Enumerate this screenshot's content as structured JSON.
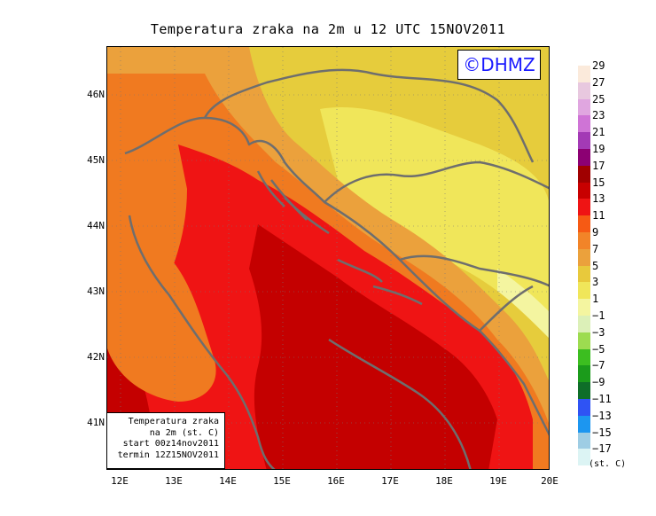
{
  "title": "Temperatura zraka na 2m u 12 UTC 15NOV2011",
  "logo": "©DHMZ",
  "info": {
    "line1": "Temperatura zraka",
    "line2": "na 2m (st. C)",
    "line3": "start 00z14nov2011",
    "line4": "termin 12Z15NOV2011"
  },
  "lat_labels": [
    "46N",
    "45N",
    "44N",
    "43N",
    "42N",
    "41N"
  ],
  "lon_labels": [
    "12E",
    "13E",
    "14E",
    "15E",
    "16E",
    "17E",
    "18E",
    "19E",
    "20E"
  ],
  "legend": {
    "unit": "(st. C)",
    "labels": [
      "29",
      "27",
      "25",
      "23",
      "21",
      "19",
      "17",
      "15",
      "13",
      "11",
      "9",
      "7",
      "5",
      "3",
      "1",
      "−1",
      "−3",
      "−5",
      "−7",
      "−9",
      "−11",
      "−13",
      "−15",
      "−17"
    ],
    "colors": [
      "#fbeadb",
      "#e8c8df",
      "#e0a6e0",
      "#cf74d6",
      "#a33ab5",
      "#8c0073",
      "#a00000",
      "#c80000",
      "#ef1414",
      "#f65a14",
      "#f28428",
      "#eba13c",
      "#e8c93c",
      "#f0e65a",
      "#f4f5a0",
      "#dcf0b8",
      "#9ddc50",
      "#3cbe20",
      "#1b9b1b",
      "#0e6e28",
      "#2f53f4",
      "#1c96f0",
      "#9ecde4",
      "#dcf4f4"
    ]
  },
  "colors": {
    "coast": "#6e6e6e",
    "sea_warm": "#c40000",
    "sea_hot": "#ee1c1c",
    "land_orange": "#f07a20",
    "land_yellow": "#e6cc3c"
  }
}
